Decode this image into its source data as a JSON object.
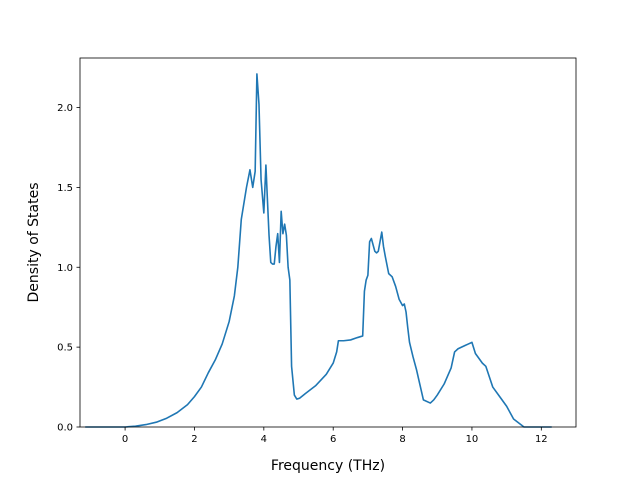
{
  "chart_data": {
    "type": "line",
    "title": "",
    "xlabel": "Frequency (THz)",
    "ylabel": "Density of States",
    "xlim": [
      -1.3,
      13.0
    ],
    "ylim": [
      0.0,
      2.31
    ],
    "grid": false,
    "x_ticks": [
      0,
      2,
      4,
      6,
      8,
      10,
      12
    ],
    "x_tick_labels": [
      "0",
      "2",
      "4",
      "6",
      "8",
      "10",
      "12"
    ],
    "y_ticks": [
      0.0,
      0.5,
      1.0,
      1.5,
      2.0
    ],
    "y_tick_labels": [
      "0.0",
      "0.5",
      "1.0",
      "1.5",
      "2.0"
    ],
    "colors": {
      "line": "#1f77b4"
    },
    "series": [
      {
        "x": [
          -1.15,
          -0.5,
          0.0,
          0.3,
          0.6,
          0.9,
          1.2,
          1.5,
          1.8,
          2.0,
          2.2,
          2.4,
          2.6,
          2.8,
          3.0,
          3.15,
          3.25,
          3.35,
          3.5,
          3.6,
          3.68,
          3.75,
          3.8,
          3.86,
          3.92,
          4.0,
          4.06,
          4.1,
          4.15,
          4.2,
          4.25,
          4.3,
          4.35,
          4.4,
          4.45,
          4.5,
          4.55,
          4.6,
          4.65,
          4.7,
          4.75,
          4.8,
          4.88,
          4.95,
          5.03,
          5.2,
          5.5,
          5.8,
          6.0,
          6.1,
          6.15,
          6.3,
          6.5,
          6.7,
          6.85,
          6.9,
          6.95,
          7.0,
          7.05,
          7.1,
          7.2,
          7.25,
          7.3,
          7.4,
          7.45,
          7.5,
          7.6,
          7.7,
          7.8,
          7.9,
          8.0,
          8.05,
          8.1,
          8.15,
          8.2,
          8.3,
          8.4,
          8.6,
          8.8,
          8.9,
          9.0,
          9.2,
          9.4,
          9.5,
          9.6,
          9.8,
          9.9,
          10.0,
          10.1,
          10.3,
          10.4,
          10.6,
          10.8,
          11.0,
          11.1,
          11.2,
          11.5,
          12.0,
          12.3
        ],
        "y": [
          0.0,
          0.0,
          0.0,
          0.005,
          0.015,
          0.03,
          0.055,
          0.09,
          0.14,
          0.19,
          0.25,
          0.34,
          0.42,
          0.52,
          0.66,
          0.82,
          1.0,
          1.3,
          1.5,
          1.61,
          1.5,
          1.6,
          2.21,
          2.02,
          1.55,
          1.34,
          1.64,
          1.44,
          1.2,
          1.03,
          1.02,
          1.02,
          1.13,
          1.21,
          1.03,
          1.35,
          1.21,
          1.27,
          1.2,
          1.0,
          0.92,
          0.38,
          0.2,
          0.175,
          0.18,
          0.21,
          0.26,
          0.33,
          0.4,
          0.47,
          0.54,
          0.54,
          0.545,
          0.56,
          0.57,
          0.85,
          0.92,
          0.95,
          1.16,
          1.18,
          1.1,
          1.09,
          1.1,
          1.22,
          1.13,
          1.07,
          0.96,
          0.94,
          0.88,
          0.8,
          0.76,
          0.77,
          0.72,
          0.62,
          0.53,
          0.44,
          0.36,
          0.17,
          0.15,
          0.17,
          0.2,
          0.27,
          0.37,
          0.47,
          0.49,
          0.51,
          0.52,
          0.53,
          0.46,
          0.4,
          0.38,
          0.25,
          0.19,
          0.13,
          0.09,
          0.05,
          0.0,
          0.0,
          0.0
        ]
      }
    ]
  }
}
